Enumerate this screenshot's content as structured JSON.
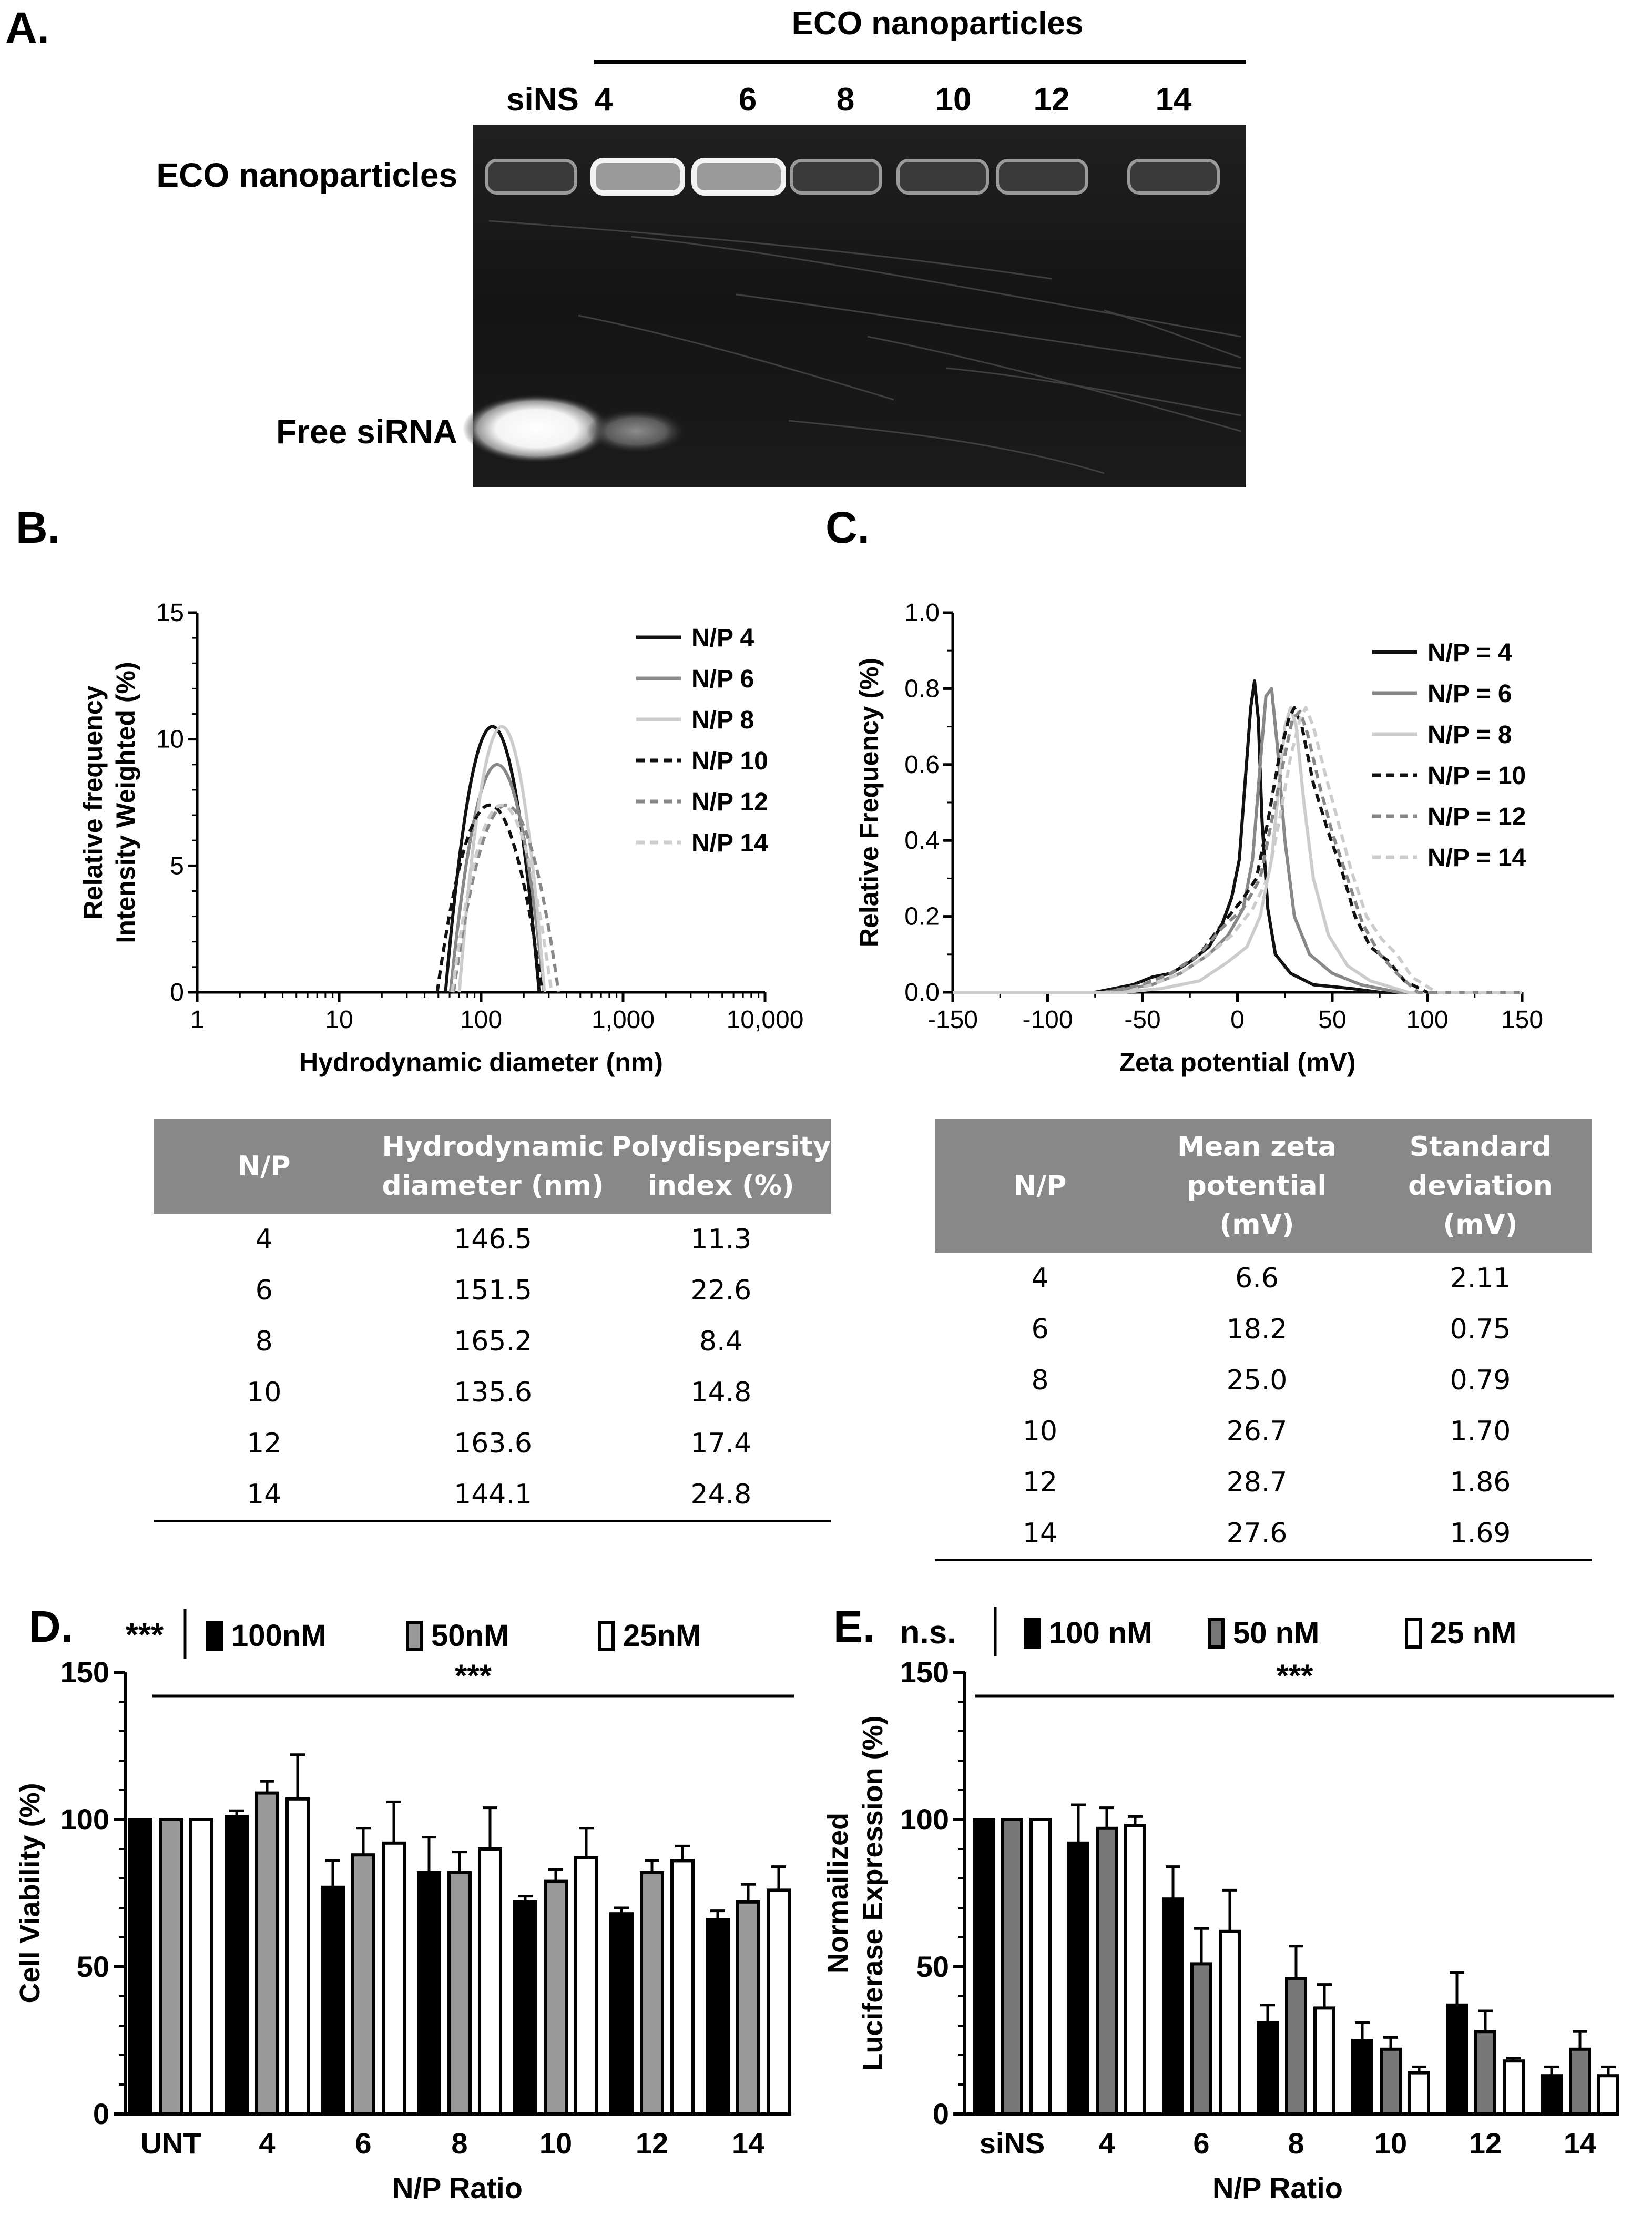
{
  "panelA": {
    "letter": "A.",
    "title": "ECO nanoparticles",
    "lanes": [
      "siNS",
      "4",
      "6",
      "8",
      "10",
      "12",
      "14"
    ],
    "row_labels": [
      "ECO nanoparticles",
      "Free siRNA"
    ]
  },
  "panelB": {
    "letter": "B.",
    "table": {
      "headers": [
        "N/P",
        "Hydrodynamic diameter (nm)",
        "Polydispersity index (%)"
      ],
      "rows": [
        [
          "4",
          "146.5",
          "11.3"
        ],
        [
          "6",
          "151.5",
          "22.6"
        ],
        [
          "8",
          "165.2",
          "8.4"
        ],
        [
          "10",
          "135.6",
          "14.8"
        ],
        [
          "12",
          "163.6",
          "17.4"
        ],
        [
          "14",
          "144.1",
          "24.8"
        ]
      ]
    }
  },
  "panelC": {
    "letter": "C.",
    "table": {
      "headers": [
        "N/P",
        "Mean zeta potential (mV)",
        "Standard deviation (mV)"
      ],
      "rows": [
        [
          "4",
          "6.6",
          "2.11"
        ],
        [
          "6",
          "18.2",
          "0.75"
        ],
        [
          "8",
          "25.0",
          "0.79"
        ],
        [
          "10",
          "26.7",
          "1.70"
        ],
        [
          "12",
          "28.7",
          "1.86"
        ],
        [
          "14",
          "27.6",
          "1.69"
        ]
      ]
    }
  },
  "panelD": {
    "letter": "D."
  },
  "panelE": {
    "letter": "E."
  },
  "chart_data": [
    {
      "id": "B",
      "type": "line",
      "xlabel": "Hydrodynamic diameter (nm)",
      "ylabel": [
        "Relative frequency",
        "Intensity Weighted  (%)"
      ],
      "xscale": "log",
      "xlim": [
        1,
        10000
      ],
      "ylim": [
        0,
        15
      ],
      "xticks": [
        1,
        10,
        100,
        1000,
        10000
      ],
      "xticklabels": [
        "1",
        "10",
        "100",
        "1,000",
        "10,000"
      ],
      "yticks": [
        0,
        5,
        10,
        15
      ],
      "legend_position": "top-right",
      "series": [
        {
          "name": "N/P 4",
          "color": "#111111",
          "dash": "solid",
          "center": 120,
          "peak": 10.5,
          "halfwidth_decades": 0.33
        },
        {
          "name": "N/P 6",
          "color": "#888888",
          "dash": "solid",
          "center": 130,
          "peak": 9.0,
          "halfwidth_decades": 0.33
        },
        {
          "name": "N/P 8",
          "color": "#cccccc",
          "dash": "solid",
          "center": 140,
          "peak": 10.5,
          "halfwidth_decades": 0.3
        },
        {
          "name": "N/P 10",
          "color": "#111111",
          "dash": "dashed",
          "center": 115,
          "peak": 7.4,
          "halfwidth_decades": 0.37
        },
        {
          "name": "N/P 12",
          "color": "#888888",
          "dash": "dashed",
          "center": 150,
          "peak": 7.4,
          "halfwidth_decades": 0.37
        },
        {
          "name": "N/P 14",
          "color": "#cccccc",
          "dash": "dashed",
          "center": 140,
          "peak": 7.4,
          "halfwidth_decades": 0.35
        }
      ]
    },
    {
      "id": "C",
      "type": "line",
      "xlabel": "Zeta potential (mV)",
      "ylabel": [
        "Relative Frequency (%)"
      ],
      "xlim": [
        -150,
        150
      ],
      "ylim": [
        0,
        1.0
      ],
      "xticks": [
        -150,
        -100,
        -50,
        0,
        50,
        100,
        150
      ],
      "yticks": [
        0,
        0.2,
        0.4,
        0.6,
        0.8,
        1.0
      ],
      "yticklabels": [
        "0.0",
        "0.2",
        "0.4",
        "0.6",
        "0.8",
        "1.0"
      ],
      "legend_position": "top-right",
      "series": [
        {
          "name": "N/P = 4",
          "color": "#111111",
          "dash": "solid",
          "points": [
            [
              -150,
              0
            ],
            [
              -75,
              0
            ],
            [
              -55,
              0.02
            ],
            [
              -45,
              0.04
            ],
            [
              -35,
              0.05
            ],
            [
              -25,
              0.08
            ],
            [
              -15,
              0.12
            ],
            [
              -8,
              0.18
            ],
            [
              -3,
              0.25
            ],
            [
              1,
              0.35
            ],
            [
              4,
              0.55
            ],
            [
              7,
              0.75
            ],
            [
              9,
              0.82
            ],
            [
              11,
              0.72
            ],
            [
              13,
              0.45
            ],
            [
              16,
              0.22
            ],
            [
              20,
              0.1
            ],
            [
              28,
              0.05
            ],
            [
              40,
              0.02
            ],
            [
              60,
              0.01
            ],
            [
              75,
              0
            ],
            [
              150,
              0
            ]
          ]
        },
        {
          "name": "N/P = 6",
          "color": "#888888",
          "dash": "solid",
          "points": [
            [
              -150,
              0
            ],
            [
              -70,
              0
            ],
            [
              -45,
              0.02
            ],
            [
              -30,
              0.05
            ],
            [
              -15,
              0.1
            ],
            [
              -5,
              0.15
            ],
            [
              3,
              0.22
            ],
            [
              8,
              0.35
            ],
            [
              12,
              0.6
            ],
            [
              15,
              0.78
            ],
            [
              18,
              0.8
            ],
            [
              21,
              0.65
            ],
            [
              25,
              0.4
            ],
            [
              30,
              0.2
            ],
            [
              38,
              0.1
            ],
            [
              50,
              0.05
            ],
            [
              65,
              0.02
            ],
            [
              85,
              0
            ],
            [
              150,
              0
            ]
          ]
        },
        {
          "name": "N/P = 8",
          "color": "#cccccc",
          "dash": "solid",
          "points": [
            [
              -150,
              0
            ],
            [
              -60,
              0
            ],
            [
              -40,
              0.01
            ],
            [
              -20,
              0.03
            ],
            [
              -5,
              0.08
            ],
            [
              5,
              0.12
            ],
            [
              12,
              0.2
            ],
            [
              18,
              0.35
            ],
            [
              22,
              0.55
            ],
            [
              25,
              0.7
            ],
            [
              28,
              0.75
            ],
            [
              31,
              0.7
            ],
            [
              35,
              0.5
            ],
            [
              40,
              0.3
            ],
            [
              48,
              0.15
            ],
            [
              58,
              0.07
            ],
            [
              70,
              0.03
            ],
            [
              90,
              0
            ],
            [
              150,
              0
            ]
          ]
        },
        {
          "name": "N/P = 10",
          "color": "#111111",
          "dash": "dashed",
          "points": [
            [
              -150,
              0
            ],
            [
              -70,
              0
            ],
            [
              -50,
              0.02
            ],
            [
              -35,
              0.05
            ],
            [
              -20,
              0.1
            ],
            [
              -8,
              0.18
            ],
            [
              2,
              0.24
            ],
            [
              10,
              0.3
            ],
            [
              16,
              0.45
            ],
            [
              22,
              0.62
            ],
            [
              27,
              0.72
            ],
            [
              30,
              0.75
            ],
            [
              34,
              0.7
            ],
            [
              40,
              0.55
            ],
            [
              48,
              0.42
            ],
            [
              55,
              0.32
            ],
            [
              62,
              0.2
            ],
            [
              70,
              0.12
            ],
            [
              80,
              0.08
            ],
            [
              88,
              0.03
            ],
            [
              100,
              0
            ],
            [
              150,
              0
            ]
          ]
        },
        {
          "name": "N/P = 12",
          "color": "#888888",
          "dash": "dashed",
          "points": [
            [
              -150,
              0
            ],
            [
              -70,
              0
            ],
            [
              -50,
              0.02
            ],
            [
              -35,
              0.05
            ],
            [
              -20,
              0.1
            ],
            [
              -8,
              0.17
            ],
            [
              3,
              0.22
            ],
            [
              12,
              0.3
            ],
            [
              18,
              0.45
            ],
            [
              24,
              0.6
            ],
            [
              29,
              0.72
            ],
            [
              33,
              0.74
            ],
            [
              37,
              0.68
            ],
            [
              43,
              0.55
            ],
            [
              50,
              0.42
            ],
            [
              58,
              0.3
            ],
            [
              66,
              0.18
            ],
            [
              75,
              0.1
            ],
            [
              84,
              0.05
            ],
            [
              95,
              0
            ],
            [
              150,
              0
            ]
          ]
        },
        {
          "name": "N/P = 14",
          "color": "#cccccc",
          "dash": "dashed",
          "points": [
            [
              -150,
              0
            ],
            [
              -60,
              0
            ],
            [
              -45,
              0.02
            ],
            [
              -30,
              0.05
            ],
            [
              -15,
              0.1
            ],
            [
              -3,
              0.15
            ],
            [
              8,
              0.22
            ],
            [
              16,
              0.3
            ],
            [
              22,
              0.45
            ],
            [
              28,
              0.62
            ],
            [
              33,
              0.72
            ],
            [
              36,
              0.75
            ],
            [
              40,
              0.7
            ],
            [
              46,
              0.58
            ],
            [
              53,
              0.45
            ],
            [
              60,
              0.32
            ],
            [
              68,
              0.2
            ],
            [
              76,
              0.14
            ],
            [
              84,
              0.1
            ],
            [
              92,
              0.04
            ],
            [
              105,
              0
            ],
            [
              150,
              0
            ]
          ]
        }
      ]
    },
    {
      "id": "D",
      "type": "bar",
      "xlabel": "N/P Ratio",
      "ylabel": "Cell Viability (%)",
      "categories": [
        "UNT",
        "4",
        "6",
        "8",
        "10",
        "12",
        "14"
      ],
      "ylim": [
        0,
        150
      ],
      "yticks": [
        0,
        50,
        100,
        150
      ],
      "significance_left": "***",
      "significance_line": "***",
      "series": [
        {
          "name": "100nM",
          "fill": "#000000",
          "values": [
            100,
            101,
            77,
            82,
            72,
            68,
            66
          ],
          "errors": [
            0,
            2,
            9,
            12,
            2,
            2,
            3
          ]
        },
        {
          "name": "50nM",
          "fill": "#999999",
          "values": [
            100,
            109,
            88,
            82,
            79,
            82,
            72
          ],
          "errors": [
            0,
            4,
            9,
            7,
            4,
            4,
            6
          ]
        },
        {
          "name": "25nM",
          "fill": "#ffffff",
          "values": [
            100,
            107,
            92,
            90,
            87,
            86,
            76
          ],
          "errors": [
            0,
            15,
            14,
            14,
            10,
            5,
            8
          ]
        }
      ]
    },
    {
      "id": "E",
      "type": "bar",
      "xlabel": "N/P  Ratio",
      "ylabel": [
        "Normailized",
        "Luciferase Expression  (%)"
      ],
      "categories": [
        "siNS",
        "4",
        "6",
        "8",
        "10",
        "12",
        "14"
      ],
      "ylim": [
        0,
        150
      ],
      "yticks": [
        0,
        50,
        100,
        150
      ],
      "significance_left": "n.s.",
      "significance_line": "***",
      "series": [
        {
          "name": "100 nM",
          "fill": "#000000",
          "values": [
            100,
            92,
            73,
            31,
            25,
            37,
            13
          ],
          "errors": [
            0,
            13,
            11,
            6,
            6,
            11,
            3
          ]
        },
        {
          "name": "50 nM",
          "fill": "#777777",
          "values": [
            100,
            97,
            51,
            46,
            22,
            28,
            22
          ],
          "errors": [
            0,
            7,
            12,
            11,
            4,
            7,
            6
          ]
        },
        {
          "name": "25 nM",
          "fill": "#ffffff",
          "values": [
            100,
            98,
            62,
            36,
            14,
            18,
            13
          ],
          "errors": [
            0,
            3,
            14,
            8,
            2,
            1,
            3
          ]
        }
      ]
    }
  ]
}
